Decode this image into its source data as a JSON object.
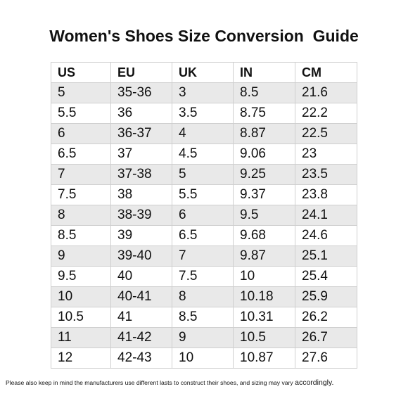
{
  "title": "Women's Shoes Size Conversion  Guide",
  "table": {
    "headers": [
      "US",
      "EU",
      "UK",
      "IN",
      "CM"
    ],
    "rows": [
      [
        "5",
        "35-36",
        "3",
        "8.5",
        "21.6"
      ],
      [
        "5.5",
        "36",
        "3.5",
        "8.75",
        "22.2"
      ],
      [
        "6",
        "36-37",
        "4",
        "8.87",
        "22.5"
      ],
      [
        "6.5",
        "37",
        "4.5",
        "9.06",
        "23"
      ],
      [
        "7",
        "37-38",
        "5",
        "9.25",
        "23.5"
      ],
      [
        "7.5",
        "38",
        "5.5",
        "9.37",
        "23.8"
      ],
      [
        "8",
        "38-39",
        "6",
        "9.5",
        "24.1"
      ],
      [
        "8.5",
        "39",
        "6.5",
        "9.68",
        "24.6"
      ],
      [
        "9",
        "39-40",
        "7",
        "9.87",
        "25.1"
      ],
      [
        "9.5",
        "40",
        "7.5",
        "10",
        "25.4"
      ],
      [
        "10",
        "40-41",
        "8",
        "10.18",
        "25.9"
      ],
      [
        "10.5",
        "41",
        "8.5",
        "10.31",
        "26.2"
      ],
      [
        "11",
        "41-42",
        "9",
        "10.5",
        "26.7"
      ],
      [
        "12",
        "42-43",
        "10",
        "10.87",
        "27.6"
      ]
    ]
  },
  "footnote": {
    "text": "Please also keep in mind the manufacturers use different lasts to construct their shoes, and sizing may vary ",
    "emphasis": "accordingly."
  }
}
